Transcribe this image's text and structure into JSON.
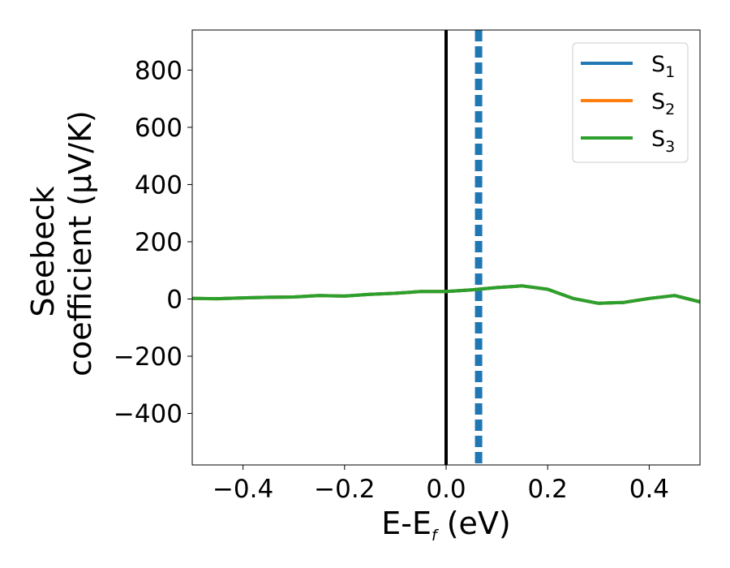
{
  "chart_data": {
    "type": "line",
    "xlabel": {
      "main": "E-E",
      "sub": "f",
      "unit": " (eV)"
    },
    "ylabel": {
      "line1": "Seebeck",
      "line2": "coefficient  (μV/K)"
    },
    "xlim": [
      -0.5,
      0.5
    ],
    "ylim": [
      -580,
      940
    ],
    "xticks": [
      -0.4,
      -0.2,
      0.0,
      0.2,
      0.4
    ],
    "xtick_labels": [
      "−0.4",
      "−0.2",
      "0.0",
      "0.2",
      "0.4"
    ],
    "yticks": [
      -400,
      -200,
      0,
      200,
      400,
      600,
      800
    ],
    "ytick_labels": [
      "−400",
      "−200",
      "0",
      "200",
      "400",
      "600",
      "800"
    ],
    "grid": false,
    "legend_position": "top-right",
    "vlines": [
      {
        "x": 0.0,
        "color": "#000000",
        "style": "solid"
      },
      {
        "x": 0.064,
        "color": "#1f77b4",
        "style": "dashed"
      }
    ],
    "x": [
      -0.5,
      -0.45,
      -0.4,
      -0.35,
      -0.3,
      -0.25,
      -0.2,
      -0.15,
      -0.1,
      -0.05,
      0.0,
      0.05,
      0.1,
      0.15,
      0.2,
      0.25,
      0.3,
      0.35,
      0.4,
      0.45,
      0.5
    ],
    "series": [
      {
        "name": "S",
        "sub": "1",
        "color": "#1f77b4",
        "values": [
          2,
          1,
          4,
          6,
          7,
          12,
          10,
          16,
          20,
          26,
          26,
          32,
          40,
          46,
          34,
          2,
          -15,
          -12,
          2,
          12,
          -10
        ]
      },
      {
        "name": "S",
        "sub": "2",
        "color": "#ff7f0e",
        "values": [
          2,
          1,
          4,
          6,
          7,
          12,
          10,
          16,
          20,
          26,
          26,
          32,
          40,
          46,
          34,
          2,
          -15,
          -12,
          2,
          12,
          -10
        ]
      },
      {
        "name": "S",
        "sub": "3",
        "color": "#2ca02c",
        "values": [
          2,
          1,
          4,
          6,
          7,
          12,
          10,
          16,
          20,
          26,
          26,
          32,
          40,
          46,
          34,
          2,
          -15,
          -12,
          2,
          12,
          -10
        ]
      }
    ]
  }
}
